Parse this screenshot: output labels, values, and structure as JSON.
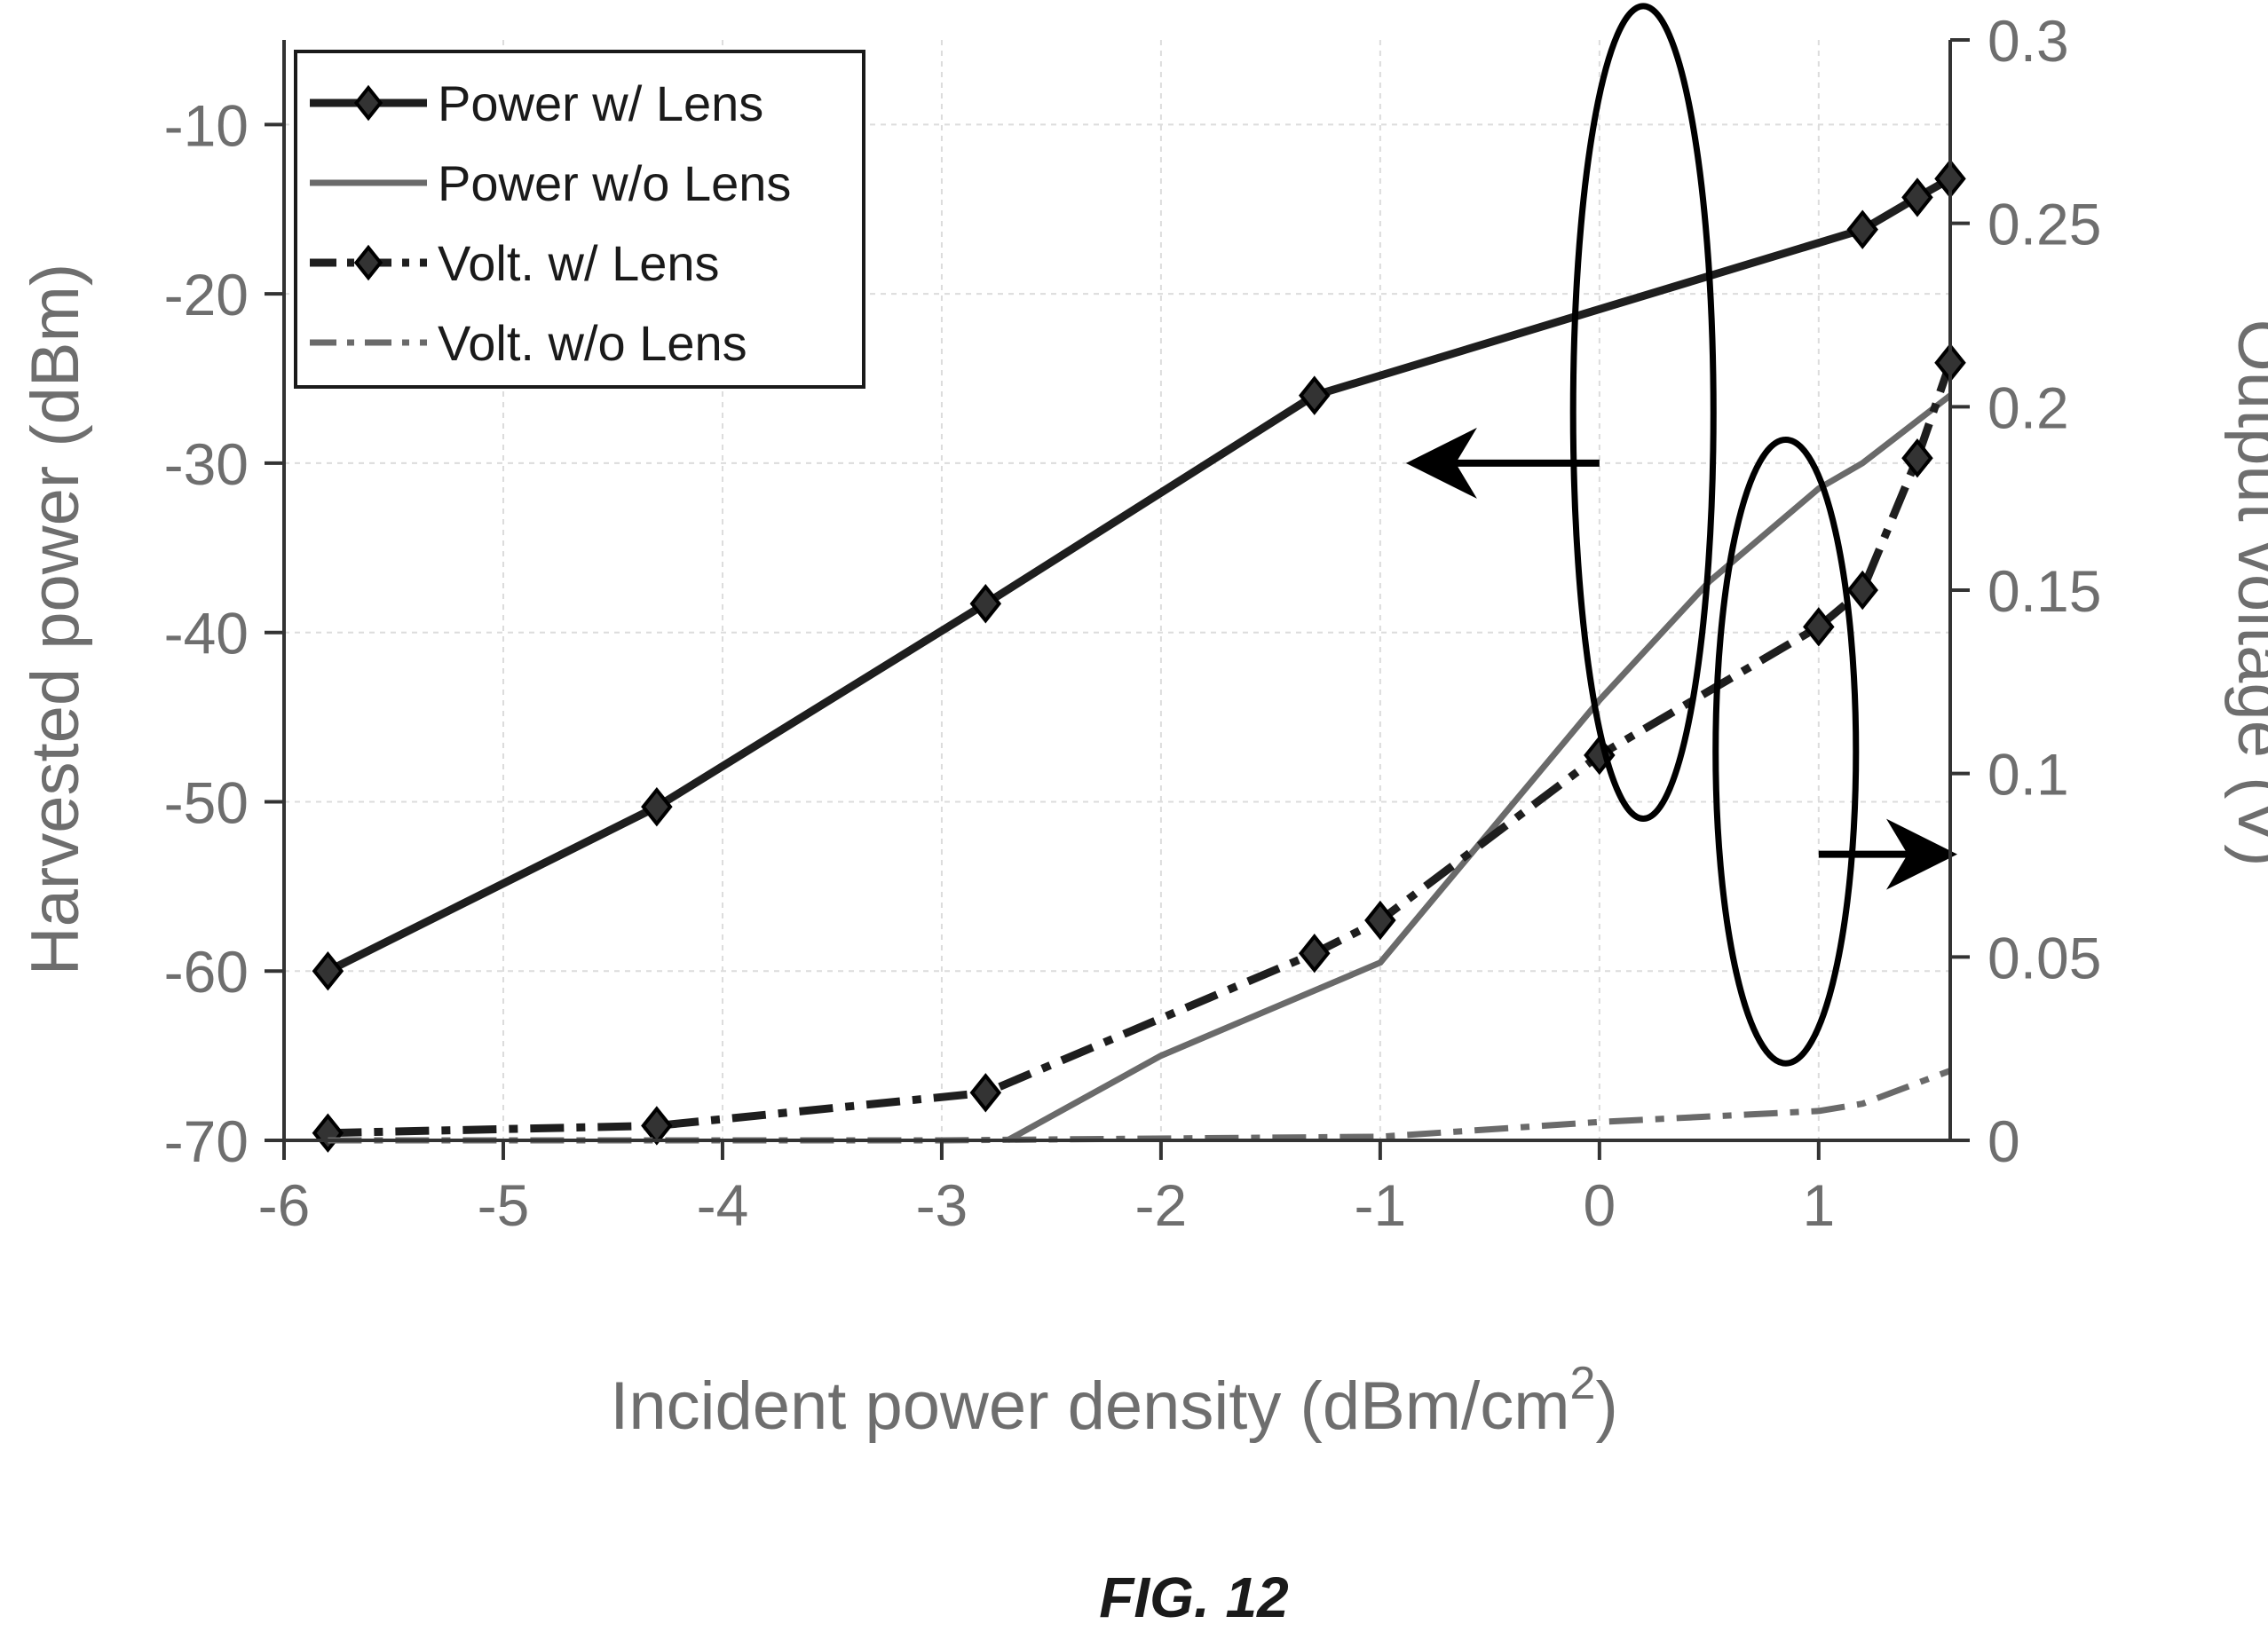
{
  "figure": {
    "caption": "FIG. 12"
  },
  "colors": {
    "w_lens": "#1e1e1e",
    "wo_lens": "#6a6a6a",
    "grid": "#dcdcdc",
    "axis": "#333333",
    "tick_text": "#6e6e6e"
  },
  "chart_data": {
    "type": "line",
    "title": "",
    "xlabel": "Incident power density (dBm/cm",
    "xlabel_superscript": "2",
    "xlabel_suffix": ")",
    "ylabel_left": "Harvested power (dBm)",
    "ylabel_right": "Output voltage (V)",
    "xlim": [
      -6,
      1.6
    ],
    "ylim_left": [
      -70,
      -5
    ],
    "ylim_right": [
      0,
      0.3
    ],
    "x_ticks": [
      -6,
      -5,
      -4,
      -3,
      -2,
      -1,
      0,
      1
    ],
    "x_tick_labels": [
      "-6",
      "-5",
      "-4",
      "-3",
      "-2",
      "-1",
      "0",
      "1"
    ],
    "y_left_ticks": [
      -70,
      -60,
      -50,
      -40,
      -30,
      -20,
      -10
    ],
    "y_left_tick_labels": [
      "-70",
      "-60",
      "-50",
      "-40",
      "-30",
      "-20",
      "-10"
    ],
    "y_right_ticks": [
      0,
      0.05,
      0.1,
      0.15,
      0.2,
      0.25,
      0.3
    ],
    "y_right_tick_labels": [
      "0",
      "0.05",
      "0.1",
      "0.15",
      "0.2",
      "0.25",
      "0.3"
    ],
    "grid": true,
    "legend_position": "top-left",
    "series": [
      {
        "name": "Power w/ Lens",
        "axis": "left",
        "style": "solid",
        "marker": "diamond",
        "color_key": "w_lens",
        "x": [
          -5.8,
          -4.3,
          -2.8,
          -1.3,
          1.2,
          1.45,
          1.6
        ],
        "y": [
          -60,
          -50.3,
          -38.3,
          -26,
          -16.2,
          -14.3,
          -13.2
        ]
      },
      {
        "name": "Power w/o Lens",
        "axis": "left",
        "style": "solid",
        "marker": "none",
        "color_key": "wo_lens",
        "x": [
          -2.7,
          -2.0,
          -1.0,
          0.0,
          0.5,
          1.0,
          1.2,
          1.45,
          1.6
        ],
        "y": [
          -70,
          -65,
          -59.5,
          -44,
          -37,
          -31.5,
          -30,
          -27.5,
          -26
        ]
      },
      {
        "name": "Volt. w/ Lens",
        "axis": "right",
        "style": "dashdot",
        "marker": "diamond",
        "color_key": "w_lens",
        "x": [
          -5.8,
          -4.3,
          -2.8,
          -1.3,
          -1.0,
          0.0,
          1.0,
          1.2,
          1.45,
          1.6
        ],
        "y": [
          0.002,
          0.004,
          0.013,
          0.051,
          0.06,
          0.105,
          0.14,
          0.15,
          0.186,
          0.212
        ]
      },
      {
        "name": "Volt. w/o Lens",
        "axis": "right",
        "style": "dashdot",
        "marker": "none",
        "color_key": "wo_lens",
        "x": [
          -5.8,
          -3.0,
          -1.0,
          0.0,
          1.0,
          1.2,
          1.6
        ],
        "y": [
          0.0,
          0.0,
          0.001,
          0.005,
          0.008,
          0.01,
          0.019
        ]
      }
    ],
    "annotations": [
      {
        "type": "ellipse-arrow",
        "refers_to": "left",
        "ellipse_center": [
          0.2,
          -27
        ],
        "ellipse_rx": 0.32,
        "ellipse_ry": 24,
        "arrow_from": [
          0.0,
          -30
        ],
        "arrow_to": [
          -0.85,
          -30
        ]
      },
      {
        "type": "ellipse-arrow",
        "refers_to": "right",
        "ellipse_center": [
          0.85,
          0.106
        ],
        "ellipse_rx": 0.32,
        "ellipse_ry": 0.085,
        "arrow_from": [
          1.0,
          0.078
        ],
        "arrow_to": [
          1.6,
          0.078
        ]
      }
    ]
  }
}
